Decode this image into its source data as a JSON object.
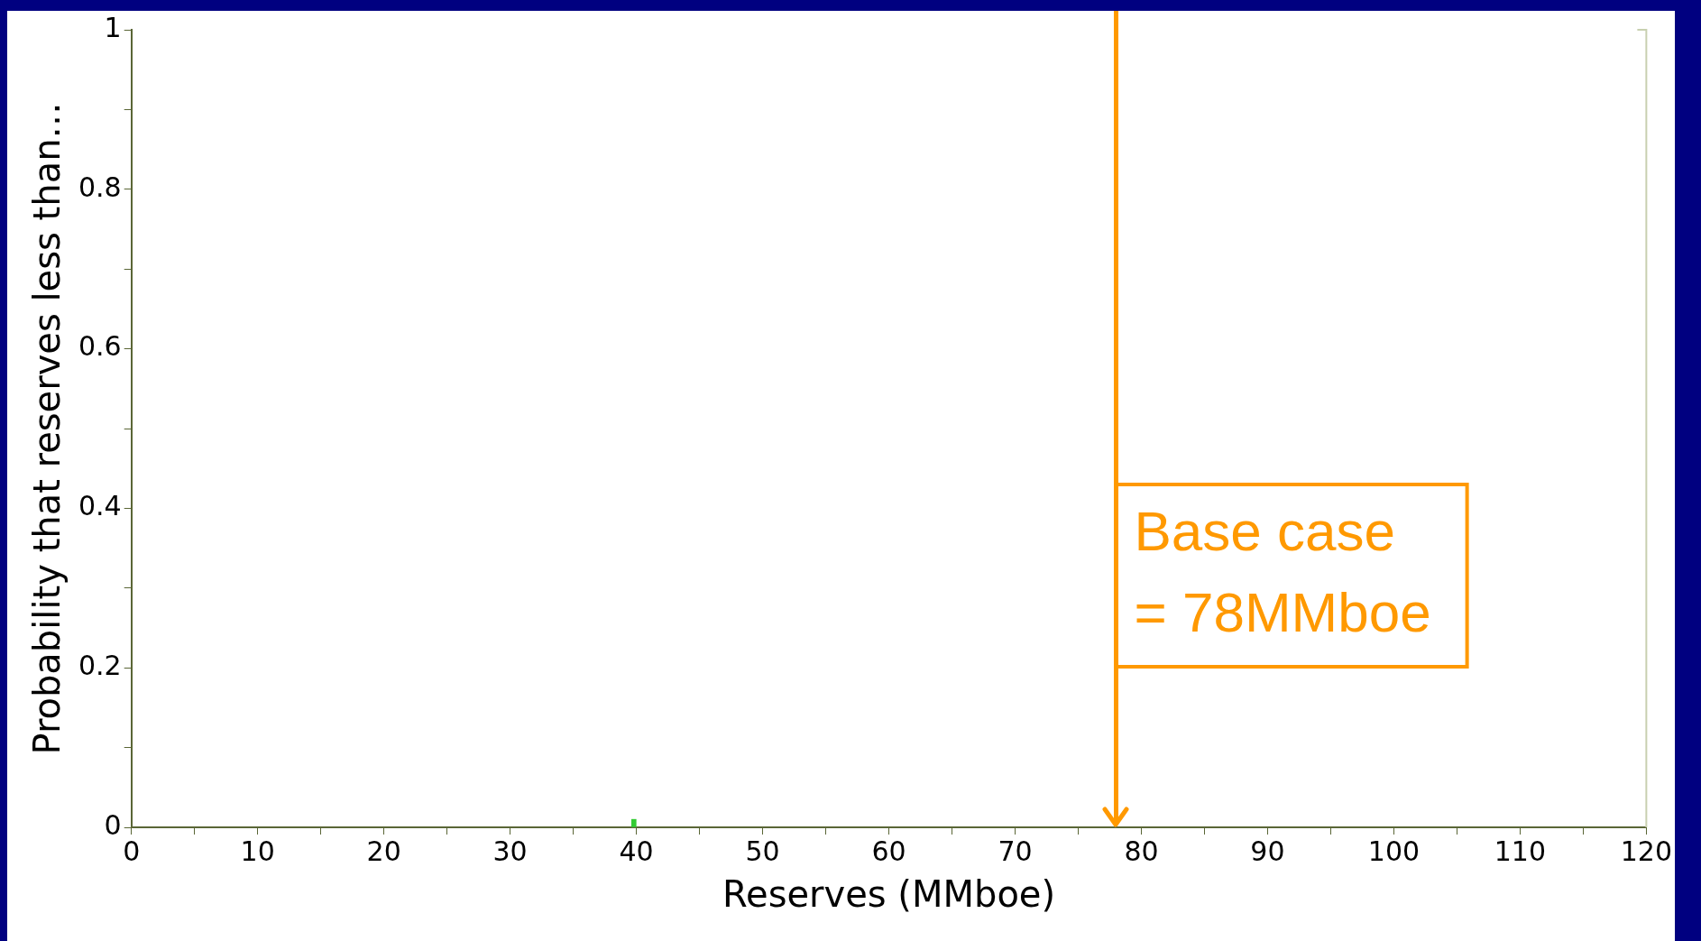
{
  "chart_data": {
    "type": "bar",
    "xlabel": "Reserves (MMboe)",
    "ylabel": "Probability that reserves less than…",
    "series": [
      {
        "color": "#33cc33",
        "x": [
          39.8
        ],
        "values": [
          0.01
        ]
      }
    ],
    "xlim": [
      0,
      120
    ],
    "xticks": [
      0,
      {
        "value": 5,
        "label": null
      },
      10,
      {
        "value": 15,
        "label": null
      },
      20,
      {
        "value": 25,
        "label": null
      },
      30,
      {
        "value": 35,
        "label": null
      },
      40,
      {
        "value": 45,
        "label": null
      },
      50,
      {
        "value": 55,
        "label": null
      },
      60,
      {
        "value": 65,
        "label": null
      },
      70,
      {
        "value": 75,
        "label": null
      },
      80,
      {
        "value": 85,
        "label": null
      },
      90,
      {
        "value": 95,
        "label": null
      },
      100,
      {
        "value": 105,
        "label": null
      },
      110,
      {
        "value": 115,
        "label": null
      },
      120
    ],
    "ylim": [
      0,
      1
    ],
    "yticks": [
      0,
      {
        "value": 0.1,
        "label": null
      },
      0.2,
      {
        "value": 0.3,
        "label": null
      },
      0.4,
      {
        "value": 0.5,
        "label": null
      },
      0.6,
      {
        "value": 0.7,
        "label": null
      },
      0.8,
      {
        "value": 0.9,
        "label": null
      },
      1
    ],
    "ref_lines": [
      {
        "axis": "x",
        "value": 78,
        "label": "Base case = 78MMboe",
        "color": "#ff9900"
      }
    ],
    "grid": false,
    "legend": false
  }
}
